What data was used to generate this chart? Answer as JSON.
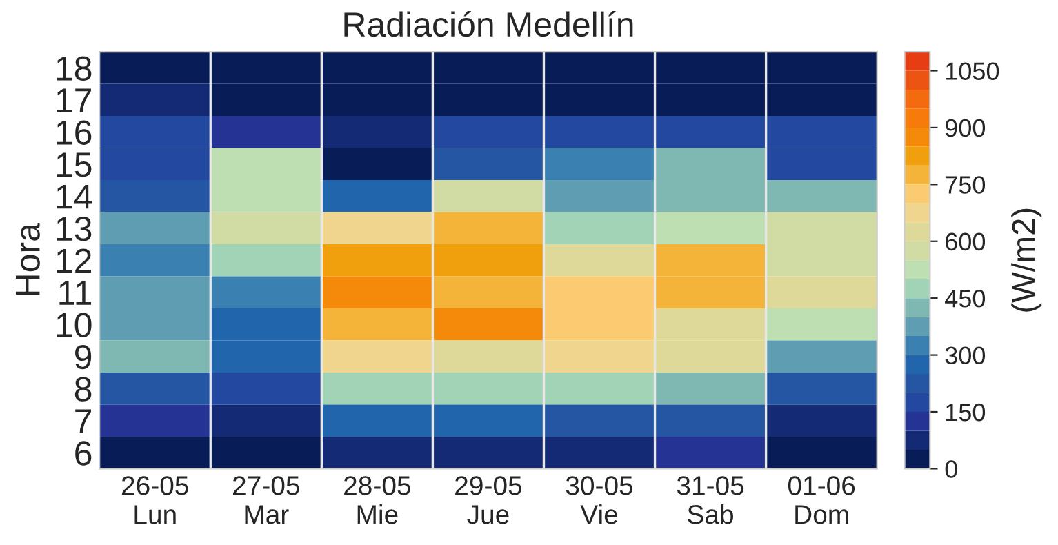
{
  "chart_data": {
    "type": "heatmap",
    "title": "Radiación Medellín",
    "ylabel": "Hora",
    "clabel": "(W/m2)",
    "categories": [
      "26-05\nLun",
      "27-05\nMar",
      "28-05\nMie",
      "29-05\nJue",
      "30-05\nVie",
      "31-05\nSab",
      "01-06\nDom"
    ],
    "y_categories": [
      "18",
      "17",
      "16",
      "15",
      "14",
      "13",
      "12",
      "11",
      "10",
      "9",
      "8",
      "7",
      "6"
    ],
    "cells": [
      [
        25,
        25,
        25,
        25,
        25,
        25,
        25
      ],
      [
        75,
        25,
        25,
        25,
        25,
        25,
        25
      ],
      [
        175,
        125,
        75,
        175,
        175,
        175,
        175
      ],
      [
        175,
        525,
        25,
        225,
        325,
        425,
        175
      ],
      [
        225,
        525,
        275,
        575,
        375,
        425,
        425
      ],
      [
        375,
        575,
        675,
        775,
        475,
        525,
        575
      ],
      [
        325,
        475,
        825,
        825,
        625,
        775,
        575
      ],
      [
        375,
        325,
        875,
        775,
        725,
        775,
        625
      ],
      [
        375,
        275,
        775,
        875,
        725,
        625,
        525
      ],
      [
        425,
        275,
        675,
        625,
        675,
        625,
        375
      ],
      [
        225,
        175,
        475,
        475,
        475,
        425,
        225
      ],
      [
        125,
        75,
        275,
        275,
        225,
        225,
        75
      ],
      [
        25,
        25,
        75,
        75,
        75,
        125,
        25
      ]
    ],
    "clim": [
      0,
      1100
    ],
    "cticks": [
      0,
      150,
      300,
      450,
      600,
      750,
      900,
      1050
    ],
    "grid": "x"
  }
}
